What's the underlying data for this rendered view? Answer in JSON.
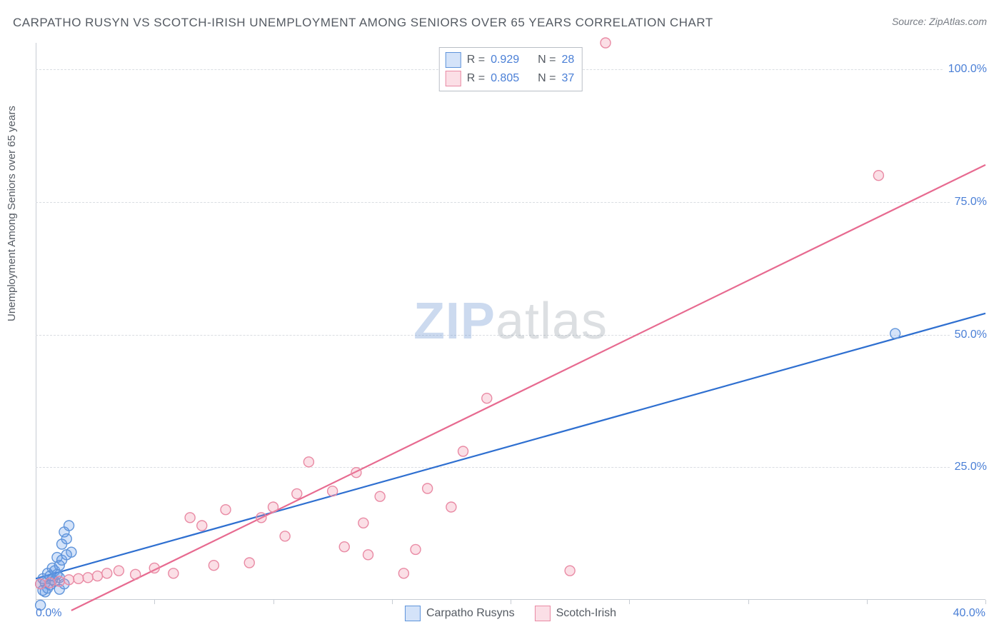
{
  "title": "CARPATHO RUSYN VS SCOTCH-IRISH UNEMPLOYMENT AMONG SENIORS OVER 65 YEARS CORRELATION CHART",
  "source_label": "Source: ZipAtlas.com",
  "y_axis_label": "Unemployment Among Seniors over 65 years",
  "watermark_left": "ZIP",
  "watermark_right": "atlas",
  "chart": {
    "type": "scatter-with-regression",
    "background_color": "#ffffff",
    "grid_color": "#d9dde2",
    "axis_color": "#c7ccd3",
    "tick_color": "#4a7fd6",
    "text_color": "#555b63",
    "xlim": [
      0,
      40
    ],
    "ylim": [
      0,
      105
    ],
    "x_ticks": {
      "min_label": "0.0%",
      "max_label": "40.0%",
      "marks": [
        0,
        5,
        10,
        15,
        20,
        25,
        30,
        35,
        40
      ]
    },
    "y_ticks": [
      {
        "v": 25,
        "label": "25.0%"
      },
      {
        "v": 50,
        "label": "50.0%"
      },
      {
        "v": 75,
        "label": "75.0%"
      },
      {
        "v": 100,
        "label": "100.0%"
      }
    ],
    "marker_radius": 7,
    "marker_stroke_width": 1.4,
    "line_width": 2.2,
    "series": [
      {
        "id": "carpatho",
        "label": "Carpatho Rusyns",
        "color_fill": "rgba(99,153,233,0.28)",
        "color_stroke": "#5f94da",
        "line_color": "#2e6fd0",
        "R": "0.929",
        "N": "28",
        "points": [
          [
            0.2,
            3.0
          ],
          [
            0.3,
            4.0
          ],
          [
            0.4,
            3.2
          ],
          [
            0.5,
            5.0
          ],
          [
            0.6,
            2.8
          ],
          [
            0.7,
            6.0
          ],
          [
            0.8,
            3.5
          ],
          [
            0.9,
            8.0
          ],
          [
            1.0,
            4.2
          ],
          [
            1.1,
            10.5
          ],
          [
            1.2,
            12.8
          ],
          [
            1.3,
            11.5
          ],
          [
            1.4,
            14.0
          ],
          [
            1.5,
            9.0
          ],
          [
            1.0,
            2.0
          ],
          [
            1.2,
            3.0
          ],
          [
            0.6,
            4.5
          ],
          [
            0.8,
            5.5
          ],
          [
            0.4,
            1.5
          ],
          [
            0.5,
            2.2
          ],
          [
            0.3,
            1.8
          ],
          [
            0.7,
            3.8
          ],
          [
            0.9,
            4.8
          ],
          [
            1.0,
            6.5
          ],
          [
            1.1,
            7.5
          ],
          [
            1.3,
            8.5
          ],
          [
            0.2,
            -1.0
          ],
          [
            36.2,
            50.2
          ]
        ],
        "regression": {
          "x1": 0,
          "y1": 4.0,
          "x2": 40,
          "y2": 54.0
        }
      },
      {
        "id": "scotch",
        "label": "Scotch-Irish",
        "color_fill": "rgba(240,140,165,0.28)",
        "color_stroke": "#e98aa4",
        "line_color": "#e76a90",
        "R": "0.805",
        "N": "37",
        "points": [
          [
            0.2,
            3.0
          ],
          [
            0.6,
            3.2
          ],
          [
            1.0,
            3.5
          ],
          [
            1.4,
            3.8
          ],
          [
            1.8,
            4.0
          ],
          [
            2.2,
            4.2
          ],
          [
            2.6,
            4.5
          ],
          [
            3.0,
            5.0
          ],
          [
            3.5,
            5.5
          ],
          [
            4.2,
            4.8
          ],
          [
            5.0,
            6.0
          ],
          [
            5.8,
            5.0
          ],
          [
            6.5,
            15.5
          ],
          [
            7.0,
            14.0
          ],
          [
            7.5,
            6.5
          ],
          [
            8.0,
            17.0
          ],
          [
            9.0,
            7.0
          ],
          [
            9.5,
            15.5
          ],
          [
            10.0,
            17.5
          ],
          [
            10.5,
            12.0
          ],
          [
            11.0,
            20.0
          ],
          [
            11.5,
            26.0
          ],
          [
            12.5,
            20.5
          ],
          [
            13.0,
            10.0
          ],
          [
            13.5,
            24.0
          ],
          [
            14.0,
            8.5
          ],
          [
            14.5,
            19.5
          ],
          [
            15.5,
            5.0
          ],
          [
            16.0,
            9.5
          ],
          [
            16.5,
            21.0
          ],
          [
            17.5,
            17.5
          ],
          [
            18.0,
            28.0
          ],
          [
            19.0,
            38.0
          ],
          [
            22.5,
            5.5
          ],
          [
            24.0,
            105.0
          ],
          [
            35.5,
            80.0
          ],
          [
            13.8,
            14.5
          ]
        ],
        "regression": {
          "x1": 1.5,
          "y1": -2.0,
          "x2": 40,
          "y2": 82.0
        }
      }
    ],
    "corr_legend_labels": {
      "R": "R =",
      "N": "N ="
    }
  }
}
